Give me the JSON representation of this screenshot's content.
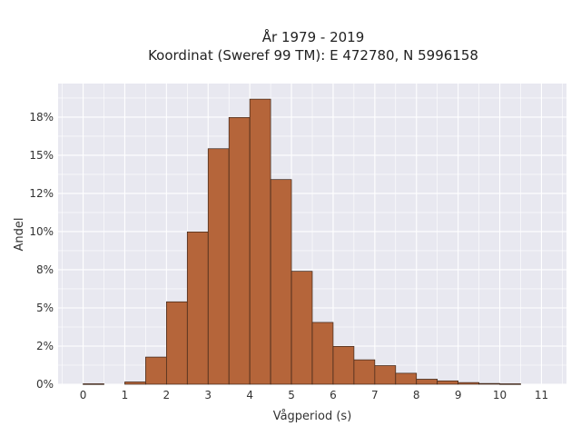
{
  "chart_data": {
    "type": "bar",
    "title_line1": "År 1979 - 2019",
    "title_line2": "Koordinat (Sweref 99 TM): E 472780, N 5996158",
    "xlabel": "Vågperiod (s)",
    "ylabel": "Andel",
    "bin_width": 0.5,
    "xlim": [
      -0.6,
      11.6
    ],
    "ylim": [
      0,
      0.197
    ],
    "x_ticks": [
      0,
      1,
      2,
      3,
      4,
      5,
      6,
      7,
      8,
      9,
      10,
      11
    ],
    "x_tick_labels": [
      "0",
      "1",
      "2",
      "3",
      "4",
      "5",
      "6",
      "7",
      "8",
      "9",
      "10",
      "11"
    ],
    "y_ticks": [
      0,
      0.025,
      0.05,
      0.075,
      0.1,
      0.125,
      0.15,
      0.175
    ],
    "y_tick_labels": [
      "0%",
      "2%",
      "5%",
      "8%",
      "10%",
      "12%",
      "15%",
      "18%"
    ],
    "grid": true,
    "bar_color": "#b5653a",
    "bar_edge_color": "#3a2418",
    "plot_background": "#e8e8f0",
    "bins": [
      {
        "x0": 0.0,
        "value": 0.0003
      },
      {
        "x0": 1.0,
        "value": 0.0015
      },
      {
        "x0": 1.5,
        "value": 0.0178
      },
      {
        "x0": 2.0,
        "value": 0.054
      },
      {
        "x0": 2.5,
        "value": 0.0998
      },
      {
        "x0": 3.0,
        "value": 0.1543
      },
      {
        "x0": 3.5,
        "value": 0.1748
      },
      {
        "x0": 4.0,
        "value": 0.1868
      },
      {
        "x0": 4.5,
        "value": 0.1341
      },
      {
        "x0": 5.0,
        "value": 0.074
      },
      {
        "x0": 5.5,
        "value": 0.0405
      },
      {
        "x0": 6.0,
        "value": 0.0248
      },
      {
        "x0": 6.5,
        "value": 0.016
      },
      {
        "x0": 7.0,
        "value": 0.0122
      },
      {
        "x0": 7.5,
        "value": 0.0072
      },
      {
        "x0": 8.0,
        "value": 0.0033
      },
      {
        "x0": 8.5,
        "value": 0.0022
      },
      {
        "x0": 9.0,
        "value": 0.0011
      },
      {
        "x0": 9.5,
        "value": 0.0005
      },
      {
        "x0": 10.0,
        "value": 0.0003
      }
    ]
  }
}
